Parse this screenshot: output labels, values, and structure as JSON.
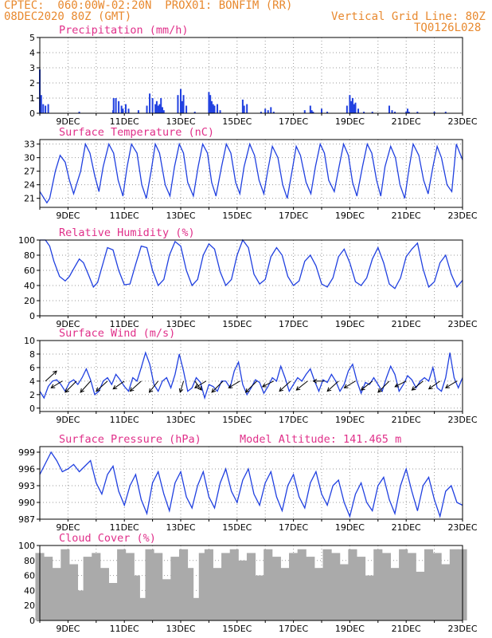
{
  "header": {
    "line1_left": "CPTEC:  060:00W-02:20N  PROX01: BONFIM (RR)",
    "line2_left": "08DEC2020 80Z (GMT)",
    "line2_right": "Vertical Grid Line: 80Z",
    "line3_right": "TQ0126L028"
  },
  "colors": {
    "line": "#2040e0",
    "bar": "#2040e0",
    "cloud": "#aaaaaa",
    "title": "#e0308a",
    "header": "#e8892f"
  },
  "chart_data": [
    {
      "type": "bar",
      "title": "Precipitation (mm/h)",
      "ylim": [
        0,
        5
      ],
      "yticks": [
        0,
        1,
        2,
        3,
        4,
        5
      ],
      "xlim": [
        8.0,
        23.0
      ],
      "xticks": [
        "9DEC",
        "11DEC",
        "13DEC",
        "15DEC",
        "17DEC",
        "19DEC",
        "21DEC",
        "23DEC"
      ],
      "x": [
        8.0,
        8.05,
        8.12,
        8.2,
        8.3,
        9.4,
        10.6,
        10.62,
        10.7,
        10.8,
        10.9,
        10.95,
        11.05,
        11.15,
        11.5,
        11.8,
        11.9,
        12.0,
        12.1,
        12.15,
        12.2,
        12.25,
        12.3,
        12.35,
        12.4,
        12.9,
        13.0,
        13.05,
        13.1,
        13.2,
        13.5,
        14.0,
        14.05,
        14.1,
        14.15,
        14.2,
        14.3,
        14.4,
        15.2,
        15.25,
        15.35,
        15.85,
        16.0,
        16.1,
        16.2,
        16.3,
        17.4,
        17.6,
        17.65,
        17.7,
        18.0,
        18.2,
        18.9,
        19.0,
        19.05,
        19.1,
        19.15,
        19.2,
        19.3,
        19.5,
        19.8,
        20.4,
        20.5,
        20.6,
        21.0,
        21.05,
        21.1,
        21.4,
        22.0,
        22.4
      ],
      "values": [
        2.9,
        1.2,
        0.6,
        0.5,
        0.6,
        0.1,
        0.2,
        1.0,
        1.0,
        0.8,
        0.5,
        0.3,
        0.6,
        0.3,
        0.2,
        0.5,
        1.3,
        1.0,
        0.6,
        0.8,
        0.5,
        0.6,
        1.0,
        0.4,
        0.2,
        1.2,
        1.6,
        0.8,
        1.2,
        0.5,
        0.1,
        1.4,
        1.2,
        0.8,
        0.6,
        0.5,
        0.6,
        0.2,
        0.9,
        0.5,
        0.6,
        0.1,
        0.3,
        0.2,
        0.4,
        0.1,
        0.2,
        0.5,
        0.2,
        0.1,
        0.3,
        0.1,
        0.5,
        1.2,
        0.8,
        1.0,
        0.6,
        0.7,
        0.3,
        0.1,
        0.1,
        0.5,
        0.2,
        0.1,
        0.1,
        0.3,
        0.1,
        0.1,
        0.1,
        0.1
      ]
    },
    {
      "type": "line",
      "title": "Surface Temperature (nC)",
      "ylim": [
        19,
        34
      ],
      "yticks": [
        21,
        24,
        27,
        30,
        33
      ],
      "xlim": [
        8.0,
        23.0
      ],
      "xticks": [
        "9DEC",
        "11DEC",
        "13DEC",
        "15DEC",
        "17DEC",
        "19DEC",
        "21DEC",
        "23DEC"
      ],
      "x": [
        8.0,
        8.25,
        8.35,
        8.55,
        8.72,
        8.9,
        9.05,
        9.2,
        9.45,
        9.62,
        9.78,
        9.95,
        10.1,
        10.25,
        10.45,
        10.62,
        10.78,
        10.95,
        11.1,
        11.25,
        11.45,
        11.62,
        11.78,
        11.95,
        12.1,
        12.25,
        12.45,
        12.62,
        12.78,
        12.95,
        13.1,
        13.25,
        13.45,
        13.62,
        13.78,
        13.95,
        14.1,
        14.25,
        14.45,
        14.62,
        14.78,
        14.95,
        15.1,
        15.25,
        15.45,
        15.62,
        15.78,
        15.95,
        16.1,
        16.25,
        16.45,
        16.62,
        16.78,
        16.95,
        17.1,
        17.25,
        17.45,
        17.62,
        17.78,
        17.95,
        18.1,
        18.25,
        18.45,
        18.62,
        18.78,
        18.95,
        19.1,
        19.25,
        19.45,
        19.62,
        19.78,
        19.95,
        20.1,
        20.25,
        20.45,
        20.62,
        20.78,
        20.95,
        21.1,
        21.25,
        21.45,
        21.62,
        21.78,
        21.95,
        22.1,
        22.25,
        22.45,
        22.62,
        22.78,
        23.0
      ],
      "values": [
        22.5,
        20.0,
        21.0,
        27.0,
        30.5,
        29.0,
        25.0,
        22.0,
        27.0,
        33.0,
        31.0,
        26.0,
        22.5,
        28.0,
        33.0,
        31.0,
        25.0,
        21.5,
        28.0,
        33.0,
        31.0,
        24.0,
        21.0,
        27.0,
        33.0,
        31.0,
        24.0,
        21.5,
        28.0,
        33.0,
        31.0,
        24.5,
        21.5,
        28.0,
        33.0,
        31.0,
        24.5,
        21.5,
        28.0,
        33.0,
        31.0,
        24.5,
        22.0,
        28.0,
        33.0,
        30.5,
        25.0,
        22.0,
        27.5,
        32.5,
        30.0,
        24.0,
        21.0,
        27.0,
        32.5,
        30.5,
        24.5,
        22.0,
        28.0,
        33.0,
        31.0,
        25.0,
        22.5,
        28.0,
        33.0,
        30.5,
        24.5,
        21.5,
        28.0,
        33.0,
        31.0,
        25.0,
        21.5,
        28.0,
        32.5,
        30.0,
        24.0,
        21.0,
        27.5,
        33.0,
        30.5,
        25.0,
        22.0,
        28.0,
        32.5,
        30.0,
        24.0,
        22.5,
        33.0,
        29.5
      ]
    },
    {
      "type": "line",
      "title": "Relative Humidity (%)",
      "ylim": [
        0,
        100
      ],
      "yticks": [
        0,
        20,
        40,
        60,
        80,
        100
      ],
      "xlim": [
        8.0,
        23.0
      ],
      "xticks": [
        "9DEC",
        "11DEC",
        "13DEC",
        "15DEC",
        "17DEC",
        "19DEC",
        "21DEC",
        "23DEC"
      ],
      "x": [
        8.0,
        8.2,
        8.35,
        8.5,
        8.7,
        8.9,
        9.05,
        9.2,
        9.4,
        9.55,
        9.75,
        9.9,
        10.05,
        10.25,
        10.4,
        10.6,
        10.8,
        11.0,
        11.2,
        11.4,
        11.6,
        11.8,
        12.0,
        12.2,
        12.4,
        12.6,
        12.8,
        13.0,
        13.2,
        13.4,
        13.6,
        13.8,
        14.0,
        14.2,
        14.4,
        14.6,
        14.8,
        15.0,
        15.2,
        15.4,
        15.6,
        15.8,
        16.0,
        16.2,
        16.4,
        16.6,
        16.8,
        17.0,
        17.2,
        17.4,
        17.6,
        17.8,
        18.0,
        18.2,
        18.4,
        18.6,
        18.8,
        19.0,
        19.2,
        19.4,
        19.6,
        19.8,
        20.0,
        20.2,
        20.4,
        20.6,
        20.8,
        21.0,
        21.2,
        21.4,
        21.6,
        21.8,
        22.0,
        22.2,
        22.4,
        22.6,
        22.8,
        23.0
      ],
      "values": [
        100,
        100,
        92,
        72,
        52,
        46,
        52,
        62,
        75,
        70,
        52,
        38,
        44,
        70,
        90,
        87,
        60,
        41,
        42,
        68,
        92,
        90,
        60,
        40,
        48,
        80,
        98,
        92,
        60,
        40,
        48,
        80,
        95,
        88,
        58,
        40,
        48,
        80,
        100,
        90,
        55,
        42,
        48,
        78,
        90,
        80,
        52,
        40,
        46,
        72,
        80,
        66,
        42,
        38,
        50,
        78,
        88,
        70,
        45,
        40,
        50,
        75,
        90,
        70,
        42,
        36,
        50,
        78,
        88,
        96,
        62,
        38,
        45,
        70,
        80,
        55,
        38,
        47
      ]
    },
    {
      "type": "line",
      "title": "Surface Wind (m/s)",
      "ylim": [
        -0.5,
        10
      ],
      "yticks": [
        0,
        2,
        4,
        6,
        8,
        10
      ],
      "xlim": [
        8.0,
        23.0
      ],
      "xticks": [
        "9DEC",
        "11DEC",
        "13DEC",
        "15DEC",
        "17DEC",
        "19DEC",
        "21DEC",
        "23DEC"
      ],
      "x": [
        8.0,
        8.15,
        8.3,
        8.45,
        8.6,
        8.75,
        8.9,
        9.05,
        9.2,
        9.35,
        9.5,
        9.65,
        9.8,
        9.95,
        10.1,
        10.25,
        10.4,
        10.55,
        10.7,
        10.85,
        11.0,
        11.15,
        11.3,
        11.45,
        11.6,
        11.75,
        11.9,
        12.05,
        12.2,
        12.35,
        12.5,
        12.65,
        12.8,
        12.95,
        13.1,
        13.25,
        13.4,
        13.55,
        13.7,
        13.85,
        14.0,
        14.15,
        14.3,
        14.45,
        14.6,
        14.75,
        14.9,
        15.05,
        15.2,
        15.35,
        15.5,
        15.65,
        15.8,
        15.95,
        16.1,
        16.25,
        16.4,
        16.55,
        16.7,
        16.85,
        17.0,
        17.15,
        17.3,
        17.45,
        17.6,
        17.75,
        17.9,
        18.05,
        18.2,
        18.35,
        18.5,
        18.65,
        18.8,
        18.95,
        19.1,
        19.25,
        19.4,
        19.55,
        19.7,
        19.85,
        20.0,
        20.15,
        20.3,
        20.45,
        20.6,
        20.75,
        20.9,
        21.05,
        21.2,
        21.35,
        21.5,
        21.65,
        21.8,
        21.95,
        22.1,
        22.25,
        22.4,
        22.55,
        22.7,
        22.85,
        23.0
      ],
      "values": [
        2.5,
        1.5,
        3.2,
        4.0,
        4.2,
        3.5,
        2.5,
        3.8,
        4.2,
        3.5,
        4.5,
        5.8,
        4.2,
        2.0,
        2.5,
        4.0,
        4.5,
        3.5,
        5.0,
        4.2,
        3.2,
        2.5,
        4.5,
        4.0,
        6.0,
        8.2,
        6.5,
        3.5,
        2.5,
        4.0,
        4.5,
        3.0,
        5.0,
        8.0,
        5.5,
        2.5,
        3.0,
        4.5,
        3.8,
        1.5,
        3.5,
        3.2,
        2.5,
        4.0,
        4.0,
        3.0,
        5.5,
        6.8,
        3.5,
        2.0,
        3.0,
        4.2,
        3.8,
        2.2,
        3.2,
        4.5,
        4.0,
        6.2,
        4.5,
        2.5,
        3.5,
        4.5,
        4.0,
        5.0,
        5.8,
        4.0,
        2.5,
        4.2,
        3.8,
        5.0,
        4.0,
        2.5,
        3.5,
        5.5,
        6.5,
        4.0,
        2.2,
        3.8,
        3.5,
        4.5,
        3.5,
        2.5,
        4.5,
        6.2,
        5.0,
        2.5,
        3.5,
        4.8,
        4.2,
        3.0,
        4.0,
        4.5,
        4.0,
        6.0,
        3.0,
        2.5,
        4.5,
        8.2,
        4.5,
        3.0,
        4.5
      ],
      "arrows": [
        {
          "x": 8.2,
          "dx": 1.0,
          "dy": 0.9
        },
        {
          "x": 8.8,
          "dx": -1.0,
          "dy": -0.6
        },
        {
          "x": 9.3,
          "dx": -1.0,
          "dy": -1.0
        },
        {
          "x": 9.8,
          "dx": -0.9,
          "dy": -1.0
        },
        {
          "x": 10.4,
          "dx": -1.0,
          "dy": -0.9
        },
        {
          "x": 11.0,
          "dx": -1.0,
          "dy": -0.7
        },
        {
          "x": 11.6,
          "dx": -1.0,
          "dy": -0.9
        },
        {
          "x": 12.2,
          "dx": -0.8,
          "dy": -1.0
        },
        {
          "x": 13.1,
          "dx": -0.3,
          "dy": -1.0
        },
        {
          "x": 13.5,
          "dx": 0.6,
          "dy": -0.8
        },
        {
          "x": 13.9,
          "dx": -1.0,
          "dy": -0.6
        },
        {
          "x": 14.5,
          "dx": -1.0,
          "dy": -1.0
        },
        {
          "x": 15.1,
          "dx": -1.0,
          "dy": -0.6
        },
        {
          "x": 15.7,
          "dx": -1.0,
          "dy": -1.0
        },
        {
          "x": 16.3,
          "dx": -1.0,
          "dy": -0.5
        },
        {
          "x": 16.9,
          "dx": -1.0,
          "dy": -0.9
        },
        {
          "x": 17.5,
          "dx": -1.0,
          "dy": -0.8
        },
        {
          "x": 18.1,
          "dx": -1.0,
          "dy": 0.0
        },
        {
          "x": 18.6,
          "dx": -1.0,
          "dy": -0.9
        },
        {
          "x": 19.2,
          "dx": -1.0,
          "dy": -0.6
        },
        {
          "x": 19.8,
          "dx": -1.0,
          "dy": -0.8
        },
        {
          "x": 20.4,
          "dx": -1.0,
          "dy": -1.0
        },
        {
          "x": 21.0,
          "dx": -1.0,
          "dy": -0.5
        },
        {
          "x": 21.6,
          "dx": -1.0,
          "dy": -0.8
        },
        {
          "x": 22.2,
          "dx": -1.0,
          "dy": -0.7
        },
        {
          "x": 22.8,
          "dx": -1.0,
          "dy": -0.6
        }
      ]
    },
    {
      "type": "line",
      "title": "Surface Pressure (hPa)",
      "annotation": "Model Altitude: 141.465 m",
      "ylim": [
        987,
        1000
      ],
      "yticks": [
        987,
        990,
        993,
        996,
        999
      ],
      "xlim": [
        8.0,
        23.0
      ],
      "xticks": [
        "9DEC",
        "11DEC",
        "13DEC",
        "15DEC",
        "17DEC",
        "19DEC",
        "21DEC",
        "23DEC"
      ],
      "x": [
        8.0,
        8.2,
        8.4,
        8.6,
        8.8,
        9.0,
        9.2,
        9.4,
        9.6,
        9.8,
        10.0,
        10.2,
        10.4,
        10.6,
        10.8,
        11.0,
        11.2,
        11.4,
        11.6,
        11.8,
        12.0,
        12.2,
        12.4,
        12.6,
        12.8,
        13.0,
        13.2,
        13.4,
        13.6,
        13.8,
        14.0,
        14.2,
        14.4,
        14.6,
        14.8,
        15.0,
        15.2,
        15.4,
        15.6,
        15.8,
        16.0,
        16.2,
        16.4,
        16.6,
        16.8,
        17.0,
        17.2,
        17.4,
        17.6,
        17.8,
        18.0,
        18.2,
        18.4,
        18.6,
        18.8,
        19.0,
        19.2,
        19.4,
        19.6,
        19.8,
        20.0,
        20.2,
        20.4,
        20.6,
        20.8,
        21.0,
        21.2,
        21.4,
        21.6,
        21.8,
        22.0,
        22.2,
        22.4,
        22.6,
        22.8,
        23.0
      ],
      "values": [
        995.0,
        997.0,
        999.0,
        997.5,
        995.5,
        996.0,
        996.8,
        995.5,
        996.5,
        997.5,
        993.5,
        991.5,
        995.0,
        996.5,
        992.0,
        989.5,
        993.0,
        995.0,
        990.5,
        988.0,
        993.5,
        995.5,
        991.5,
        988.5,
        993.5,
        995.5,
        991.0,
        989.0,
        993.0,
        995.5,
        991.0,
        989.0,
        993.5,
        996.0,
        992.0,
        990.0,
        994.0,
        996.0,
        991.5,
        989.5,
        993.5,
        995.5,
        991.0,
        988.5,
        993.0,
        995.0,
        991.0,
        989.0,
        993.5,
        995.5,
        991.5,
        989.5,
        993.0,
        994.0,
        990.0,
        987.5,
        991.5,
        993.5,
        990.0,
        988.5,
        993.0,
        994.5,
        990.5,
        988.0,
        993.0,
        996.0,
        992.0,
        988.5,
        993.0,
        994.5,
        990.5,
        987.5,
        992.0,
        993.0,
        990.0,
        989.5
      ]
    },
    {
      "type": "bar",
      "title": "Cloud Cover (%)",
      "ylim": [
        0,
        100
      ],
      "yticks": [
        0,
        20,
        40,
        60,
        80,
        100
      ],
      "xlim": [
        8.0,
        23.0
      ],
      "xticks": [
        "9DEC",
        "11DEC",
        "13DEC",
        "15DEC",
        "17DEC",
        "19DEC",
        "21DEC",
        "23DEC"
      ],
      "x": [
        8.0,
        8.3,
        8.6,
        8.9,
        9.2,
        9.4,
        9.7,
        10.0,
        10.3,
        10.6,
        10.9,
        11.2,
        11.4,
        11.6,
        11.9,
        12.2,
        12.5,
        12.8,
        13.1,
        13.3,
        13.5,
        13.6,
        13.8,
        14.0,
        14.3,
        14.6,
        14.9,
        15.2,
        15.5,
        15.8,
        16.1,
        16.4,
        16.7,
        17.0,
        17.3,
        17.6,
        17.9,
        18.2,
        18.5,
        18.8,
        19.1,
        19.4,
        19.7,
        20.0,
        20.3,
        20.6,
        20.9,
        21.2,
        21.5,
        21.8,
        22.1,
        22.4,
        22.7,
        23.0
      ],
      "values": [
        90,
        85,
        70,
        95,
        75,
        40,
        85,
        90,
        70,
        50,
        95,
        90,
        60,
        30,
        95,
        90,
        55,
        85,
        95,
        70,
        30,
        5,
        90,
        95,
        70,
        90,
        95,
        80,
        90,
        60,
        95,
        85,
        70,
        90,
        95,
        85,
        70,
        95,
        90,
        75,
        95,
        85,
        60,
        95,
        90,
        70,
        95,
        90,
        65,
        95,
        90,
        75,
        95,
        95
      ]
    }
  ]
}
